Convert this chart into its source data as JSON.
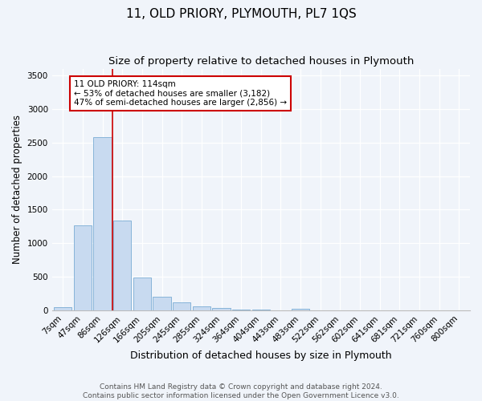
{
  "title": "11, OLD PRIORY, PLYMOUTH, PL7 1QS",
  "subtitle": "Size of property relative to detached houses in Plymouth",
  "xlabel": "Distribution of detached houses by size in Plymouth",
  "ylabel": "Number of detached properties",
  "categories": [
    "7sqm",
    "47sqm",
    "86sqm",
    "126sqm",
    "166sqm",
    "205sqm",
    "245sqm",
    "285sqm",
    "324sqm",
    "364sqm",
    "404sqm",
    "443sqm",
    "483sqm",
    "522sqm",
    "562sqm",
    "602sqm",
    "641sqm",
    "681sqm",
    "721sqm",
    "760sqm",
    "800sqm"
  ],
  "bar_values": [
    50,
    1265,
    2580,
    1340,
    495,
    200,
    115,
    55,
    30,
    15,
    8,
    5,
    20,
    0,
    0,
    0,
    0,
    0,
    0,
    0,
    0
  ],
  "bar_color": "#c8daf0",
  "bar_edge_color": "#7aacd4",
  "vline_color": "#cc0000",
  "vline_x": 2.5,
  "annotation_text": "11 OLD PRIORY: 114sqm\n← 53% of detached houses are smaller (3,182)\n47% of semi-detached houses are larger (2,856) →",
  "annotation_box_facecolor": "#ffffff",
  "annotation_box_edgecolor": "#cc0000",
  "ylim": [
    0,
    3600
  ],
  "yticks": [
    0,
    500,
    1000,
    1500,
    2000,
    2500,
    3000,
    3500
  ],
  "background_color": "#f0f4fa",
  "plot_background_color": "#f0f4fa",
  "title_fontsize": 11,
  "subtitle_fontsize": 9.5,
  "xlabel_fontsize": 9,
  "ylabel_fontsize": 8.5,
  "tick_fontsize": 7.5,
  "annot_fontsize": 7.5,
  "footer_fontsize": 6.5,
  "footer_line1": "Contains HM Land Registry data © Crown copyright and database right 2024.",
  "footer_line2": "Contains public sector information licensed under the Open Government Licence v3.0."
}
